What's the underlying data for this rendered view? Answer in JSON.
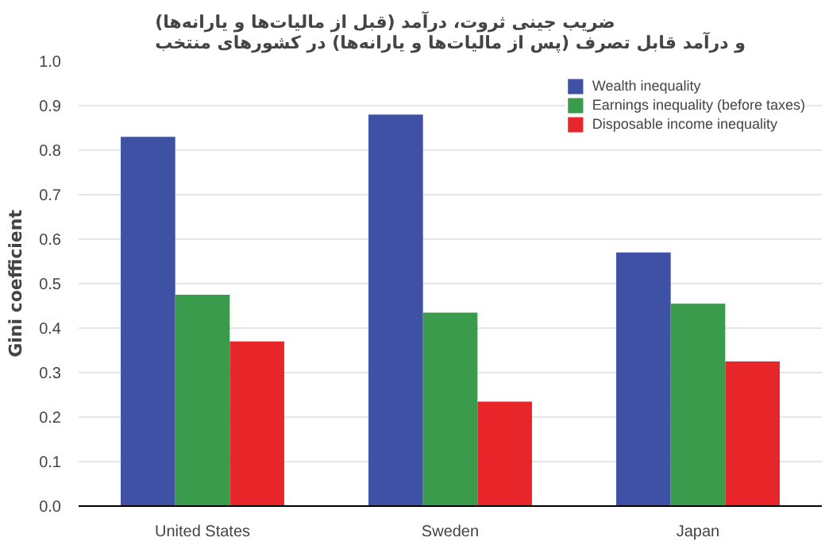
{
  "chart_data": {
    "type": "bar",
    "title": "ضریب جینی ثروت، درآمد (قبل از مالیات‌ها و یارانه‌ها)\nو درآمد قابل تصرف (پس از مالیات‌ها و یارانه‌ها) در کشورهای منتخب",
    "ylabel": "Gini coefficient",
    "categories": [
      "United States",
      "Sweden",
      "Japan"
    ],
    "series": [
      {
        "name": "Wealth inequality",
        "color": "#3f51a5",
        "values": [
          0.83,
          0.88,
          0.57
        ]
      },
      {
        "name": "Earnings inequality (before taxes)",
        "color": "#3a9b4c",
        "values": [
          0.475,
          0.435,
          0.455
        ]
      },
      {
        "name": "Disposable income inequality",
        "color": "#e8262a",
        "values": [
          0.37,
          0.235,
          0.325
        ]
      }
    ],
    "ylim": [
      0,
      1.0
    ],
    "yticks": [
      {
        "value": 0,
        "label": "0.0"
      },
      0.1,
      0.2,
      0.3,
      0.4,
      0.5,
      0.6,
      0.7,
      0.8,
      0.9,
      {
        "value": 1.0,
        "label": "1.0"
      }
    ],
    "grid": "y",
    "legend": "top right"
  }
}
